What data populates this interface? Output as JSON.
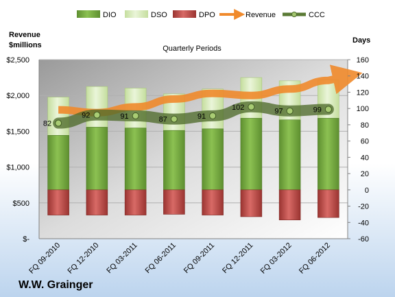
{
  "chart_data": {
    "type": "bar",
    "title": "Quarterly Periods",
    "company": "W.W. Grainger",
    "left_axis_label": "Revenue\n$millions",
    "right_axis_label": "Days",
    "categories": [
      "FQ 09-2010",
      "FQ 12-2010",
      "FQ 03-2011",
      "FQ 06-2011",
      "FQ 09-2011",
      "FQ 12-2011",
      "FQ 03-2012",
      "FQ 06-2012"
    ],
    "left_axis": {
      "min": 0,
      "max": 2500,
      "step": 500,
      "tick_labels": [
        "$-",
        "$500",
        "$1,000",
        "$1,500",
        "$2,000",
        "$2,500"
      ]
    },
    "right_axis": {
      "min": -60,
      "max": 160,
      "step": 20,
      "tick_labels": [
        "-60",
        "-40",
        "-20",
        "0",
        "20",
        "40",
        "60",
        "80",
        "100",
        "120",
        "140",
        "160"
      ]
    },
    "series": [
      {
        "name": "DIO",
        "axis": "right",
        "type": "bar",
        "color": "#76a844",
        "values": [
          67,
          77,
          76,
          73,
          75,
          88,
          86,
          88
        ]
      },
      {
        "name": "DSO",
        "axis": "right",
        "type": "bar",
        "color": "#d6e9b8",
        "values": [
          47,
          50,
          49,
          45,
          49,
          50,
          48,
          47
        ]
      },
      {
        "name": "DPO",
        "axis": "right",
        "type": "bar",
        "color": "#c0504d",
        "values": [
          -31,
          -31,
          -31,
          -30,
          -31,
          -33,
          -37,
          -34
        ]
      },
      {
        "name": "Revenue",
        "axis": "left",
        "type": "line",
        "color": "#f79646",
        "values": [
          1800,
          1760,
          1840,
          1950,
          2030,
          2000,
          2090,
          2210
        ]
      },
      {
        "name": "CCC",
        "axis": "right",
        "type": "line",
        "color": "#5a7a34",
        "values": [
          82,
          92,
          91,
          87,
          91,
          102,
          97,
          99
        ]
      }
    ],
    "legend_position": "top",
    "grid": true
  }
}
